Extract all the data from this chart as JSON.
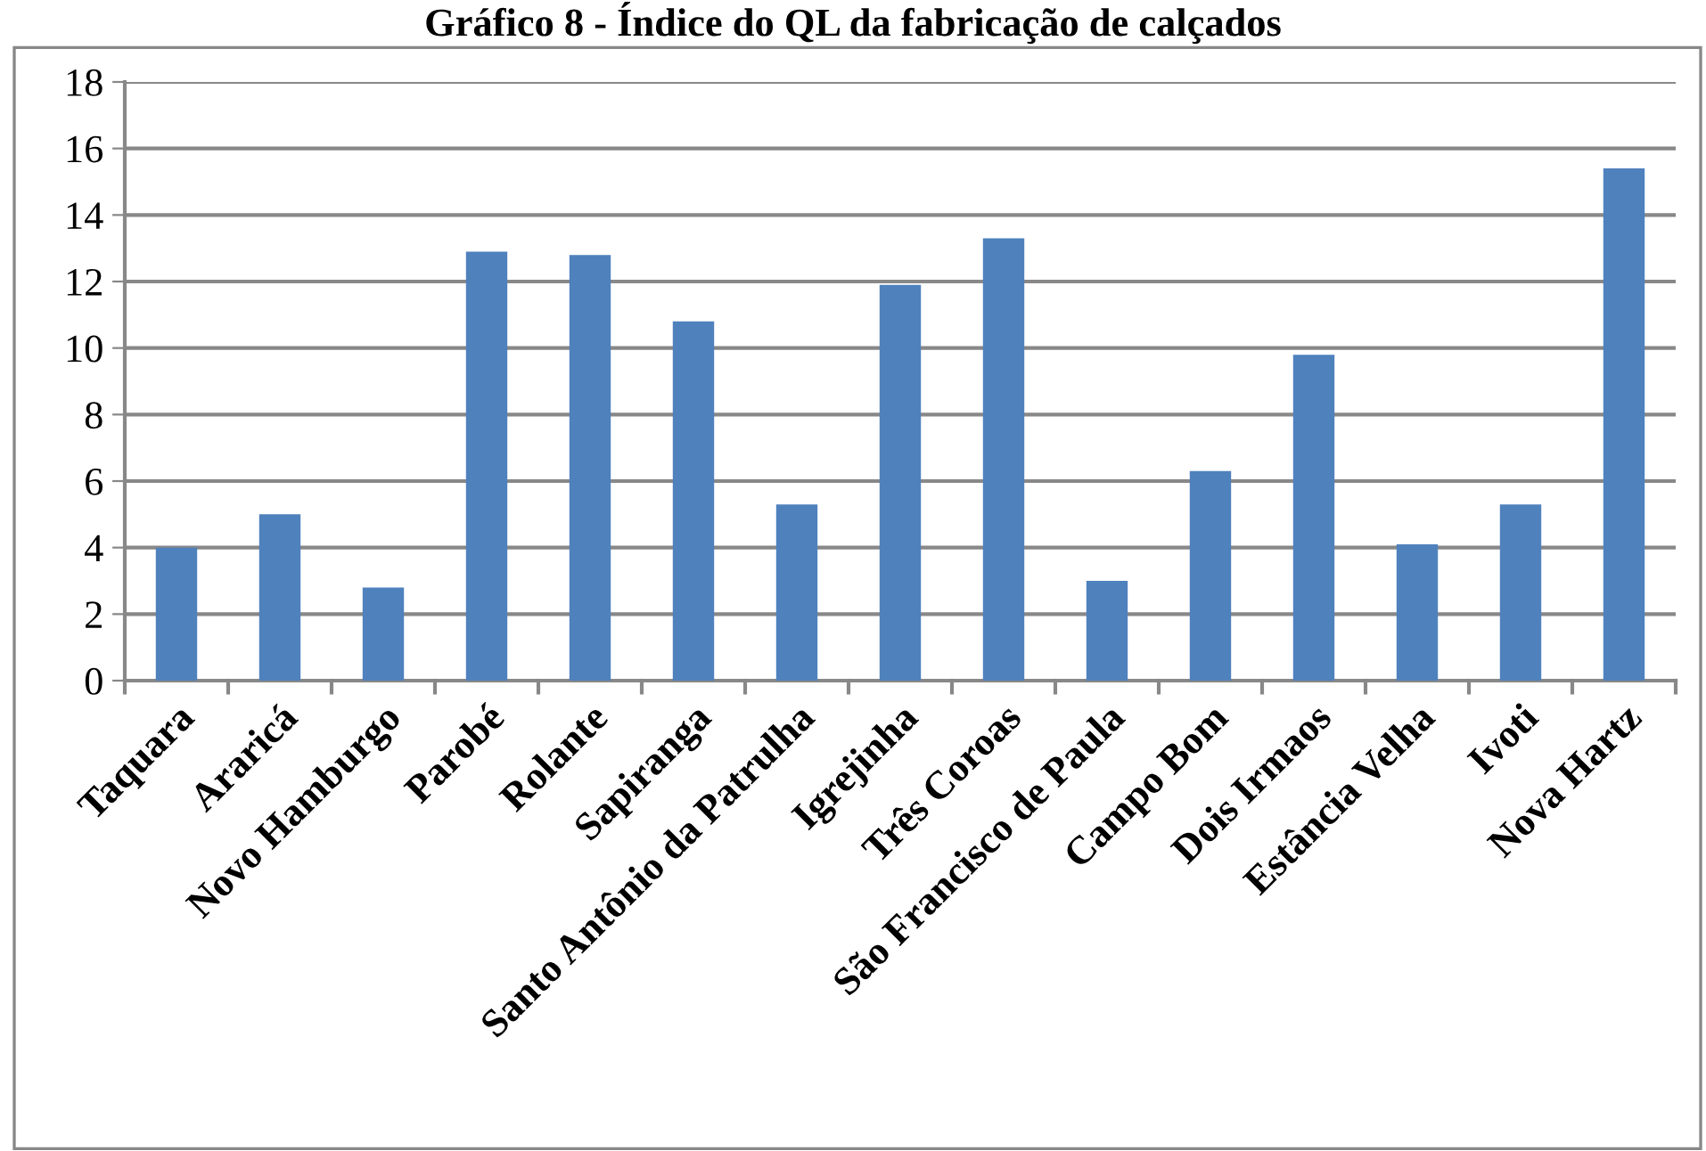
{
  "chart_data": {
    "type": "bar",
    "title": "Gráfico 8 - Índice do QL da fabricação de calçados",
    "categories": [
      "Taquara",
      "Araricá",
      "Novo Hamburgo",
      "Parobé",
      "Rolante",
      "Sapiranga",
      "Santo Antônio da Patrulha",
      "Igrejinha",
      "Três Coroas",
      "São Francisco de Paula",
      "Campo Bom",
      "Dois Irmaos",
      "Estância Velha",
      "Ivoti",
      "Nova Hartz"
    ],
    "values": [
      4.0,
      5.0,
      2.8,
      12.9,
      12.8,
      10.8,
      5.3,
      11.9,
      13.3,
      3.0,
      6.3,
      9.8,
      4.1,
      5.3,
      15.4
    ],
    "color": "#4f81bd",
    "ylim": [
      0,
      18
    ],
    "yticks": [
      0,
      2,
      4,
      6,
      8,
      10,
      12,
      14,
      16,
      18
    ],
    "grid": "y",
    "legend": false
  }
}
